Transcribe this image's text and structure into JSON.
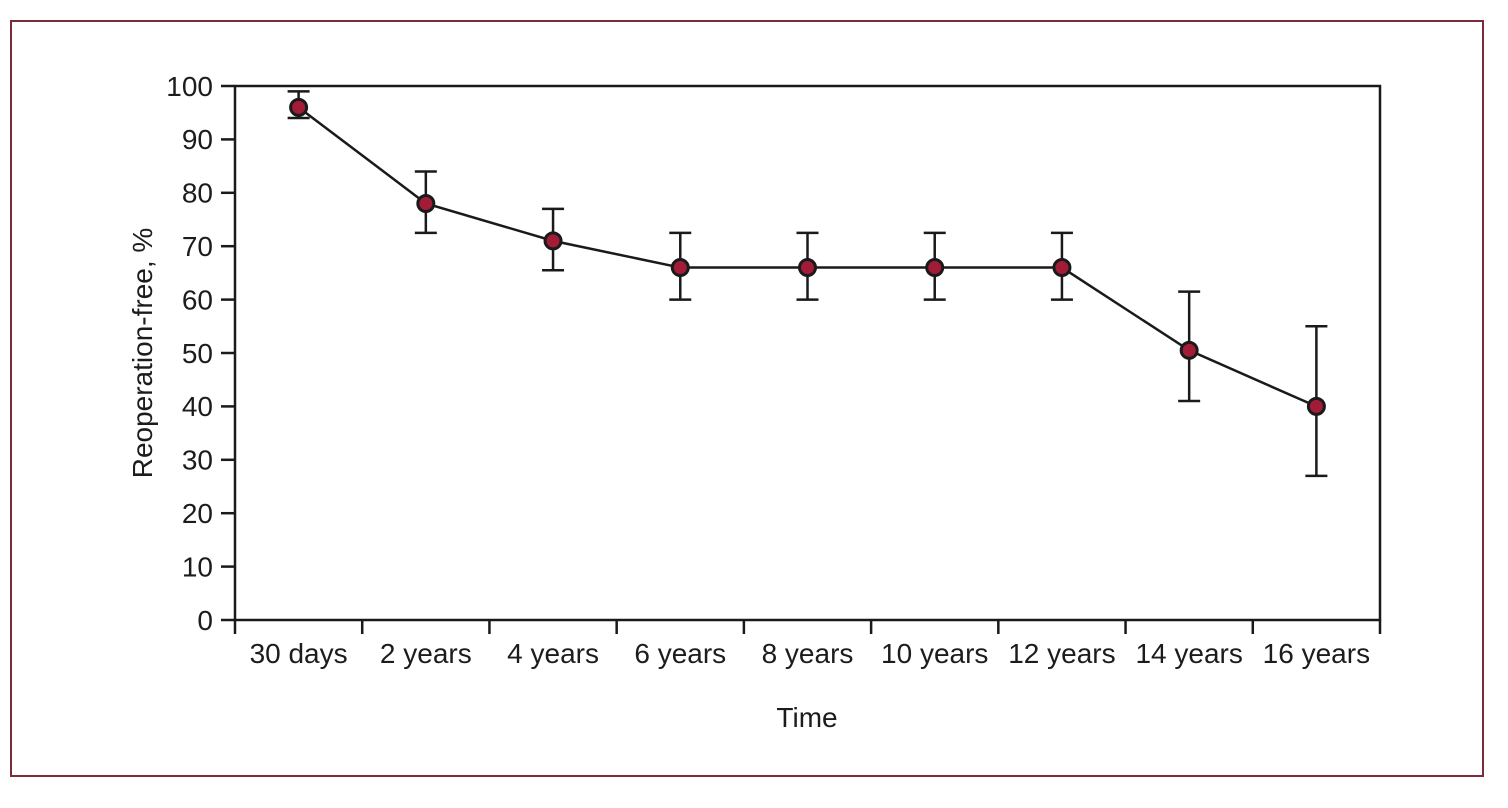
{
  "figure": {
    "background_color": "#ffffff",
    "border_color": "#7c2b3a"
  },
  "chart_data": {
    "type": "line",
    "title": "",
    "xlabel": "Time",
    "ylabel": "Reoperation-free, %",
    "categories": [
      "30 days",
      "2 years",
      "4 years",
      "6 years",
      "8 years",
      "10 years",
      "12 years",
      "14 years",
      "16 years"
    ],
    "series": [
      {
        "name": "reoperation-free-percent",
        "values": [
          96,
          78,
          71,
          66,
          66,
          66,
          66,
          50.5,
          40
        ],
        "error_low": [
          94,
          72.5,
          65.5,
          60,
          60,
          60,
          60,
          41,
          27
        ],
        "error_high": [
          99,
          84,
          77,
          72.5,
          72.5,
          72.5,
          72.5,
          61.5,
          55
        ]
      }
    ],
    "ylim": [
      0,
      100
    ],
    "y_ticks": [
      0,
      10,
      20,
      30,
      40,
      50,
      60,
      70,
      80,
      90,
      100
    ],
    "grid": false,
    "legend": "none",
    "marker_color": "#a21c38",
    "axis_color": "#1a1a1a"
  }
}
